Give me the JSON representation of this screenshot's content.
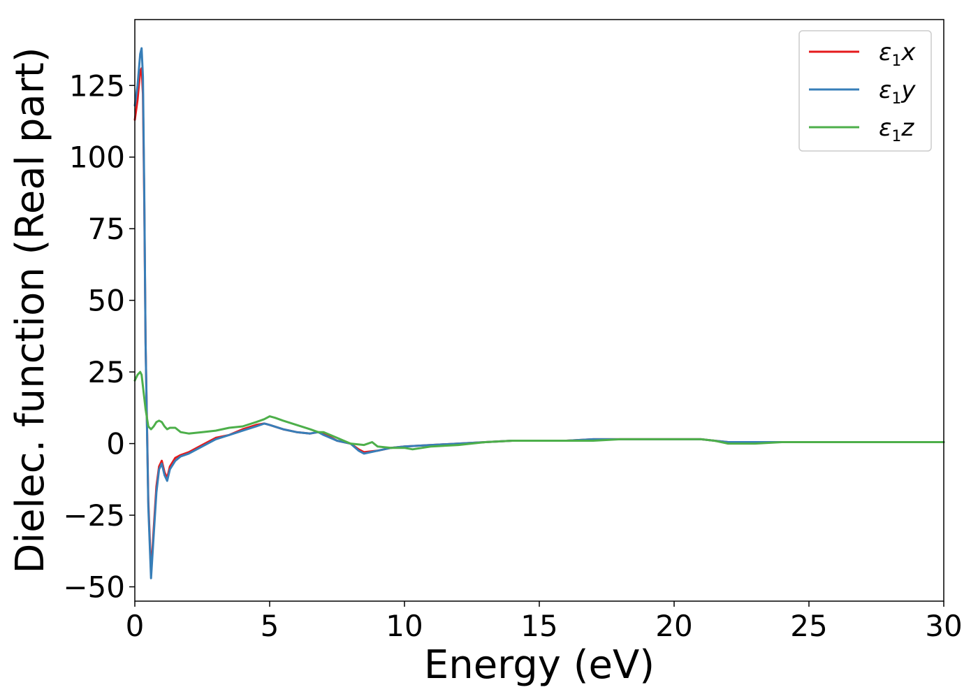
{
  "chart_data": {
    "type": "line",
    "title": "",
    "xlabel": "Energy (eV)",
    "ylabel": "Dielec. function (Real part)",
    "xlim": [
      0,
      30
    ],
    "ylim": [
      -55,
      148
    ],
    "xticks": [
      0,
      5,
      10,
      15,
      20,
      25,
      30
    ],
    "yticks": [
      -50,
      -25,
      0,
      25,
      50,
      75,
      100,
      125
    ],
    "xtick_labels": [
      "0",
      "5",
      "10",
      "15",
      "20",
      "25",
      "30"
    ],
    "ytick_labels": [
      "−50",
      "−25",
      "0",
      "25",
      "50",
      "75",
      "100",
      "125"
    ],
    "grid": false,
    "legend_position": "top-right",
    "series": [
      {
        "name": "ε1x",
        "color": "#e41a1c",
        "x": [
          0,
          0.1,
          0.2,
          0.25,
          0.3,
          0.35,
          0.4,
          0.5,
          0.6,
          0.7,
          0.8,
          0.9,
          1.0,
          1.1,
          1.2,
          1.3,
          1.5,
          1.7,
          2.0,
          2.5,
          3.0,
          3.5,
          4.0,
          4.5,
          4.8,
          5.0,
          5.5,
          6.0,
          6.5,
          6.8,
          7.0,
          7.5,
          8.0,
          8.3,
          8.5,
          9.0,
          9.5,
          10.0,
          11.0,
          12.0,
          13.0,
          14.0,
          15.0,
          16.0,
          17.0,
          18.0,
          19.0,
          20.0,
          21.0,
          21.5,
          22.0,
          23.0,
          24.0,
          25.0,
          26.0,
          27.0,
          28.0,
          29.0,
          30.0
        ],
        "values": [
          113,
          120,
          130,
          131,
          122,
          85,
          35,
          -20,
          -45,
          -30,
          -15,
          -8,
          -6,
          -10,
          -12,
          -8,
          -5,
          -4,
          -3,
          -0.5,
          2,
          3,
          5,
          6.5,
          7,
          6.5,
          5,
          4,
          3.5,
          4,
          3.5,
          1,
          0,
          -2,
          -3,
          -2.5,
          -1.5,
          -1,
          -0.5,
          0,
          0.5,
          1,
          1,
          1,
          1.5,
          1.5,
          1.5,
          1.5,
          1.5,
          1,
          0.5,
          0.5,
          0.5,
          0.5,
          0.5,
          0.5,
          0.5,
          0.5,
          0.5
        ]
      },
      {
        "name": "ε1y",
        "color": "#377eb8",
        "x": [
          0,
          0.1,
          0.2,
          0.25,
          0.3,
          0.35,
          0.4,
          0.5,
          0.6,
          0.7,
          0.8,
          0.9,
          1.0,
          1.1,
          1.2,
          1.3,
          1.5,
          1.7,
          2.0,
          2.5,
          3.0,
          3.5,
          4.0,
          4.5,
          4.8,
          5.0,
          5.5,
          6.0,
          6.5,
          6.8,
          7.0,
          7.5,
          8.0,
          8.3,
          8.5,
          9.0,
          9.5,
          10.0,
          11.0,
          12.0,
          13.0,
          14.0,
          15.0,
          16.0,
          17.0,
          18.0,
          19.0,
          20.0,
          21.0,
          21.5,
          22.0,
          23.0,
          24.0,
          25.0,
          26.0,
          27.0,
          28.0,
          29.0,
          30.0
        ],
        "values": [
          118,
          125,
          136,
          138,
          128,
          88,
          35,
          -22,
          -47,
          -32,
          -17,
          -9,
          -7,
          -11,
          -13,
          -9,
          -6,
          -4.5,
          -3.5,
          -1,
          1.5,
          3,
          4.5,
          6,
          7,
          6.5,
          5,
          4,
          3.5,
          4,
          3,
          1,
          0,
          -2.5,
          -3.5,
          -2.5,
          -1.5,
          -1,
          -0.5,
          0,
          0.5,
          1,
          1,
          1,
          1.5,
          1.5,
          1.5,
          1.5,
          1.5,
          1,
          0.5,
          0.5,
          0.5,
          0.5,
          0.5,
          0.5,
          0.5,
          0.5,
          0.5
        ]
      },
      {
        "name": "ε1z",
        "color": "#4daf4a",
        "x": [
          0,
          0.1,
          0.2,
          0.25,
          0.3,
          0.4,
          0.5,
          0.6,
          0.7,
          0.8,
          0.9,
          1.0,
          1.1,
          1.2,
          1.3,
          1.5,
          1.7,
          2.0,
          2.5,
          3.0,
          3.5,
          4.0,
          4.5,
          4.8,
          5.0,
          5.2,
          5.5,
          6.0,
          6.5,
          6.8,
          7.0,
          7.5,
          8.0,
          8.5,
          8.8,
          9.0,
          9.5,
          10.0,
          10.3,
          11.0,
          12.0,
          13.0,
          14.0,
          15.0,
          16.0,
          17.0,
          18.0,
          19.0,
          20.0,
          21.0,
          21.5,
          22.0,
          23.0,
          24.0,
          25.0,
          26.0,
          27.0,
          28.0,
          29.0,
          30.0
        ],
        "values": [
          22,
          24,
          25,
          24,
          20,
          12,
          6,
          5,
          6,
          7.5,
          8,
          7.5,
          6,
          5,
          5.5,
          5.5,
          4,
          3.5,
          4,
          4.5,
          5.5,
          6,
          7.5,
          8.5,
          9.5,
          9,
          8,
          6.5,
          5,
          4,
          4,
          2,
          0,
          -0.5,
          0.5,
          -1,
          -1.5,
          -1.5,
          -2,
          -1,
          -0.5,
          0.5,
          1,
          1,
          1,
          1,
          1.5,
          1.5,
          1.5,
          1.5,
          1,
          0,
          0,
          0.5,
          0.5,
          0.5,
          0.5,
          0.5,
          0.5,
          0.5
        ]
      }
    ]
  }
}
